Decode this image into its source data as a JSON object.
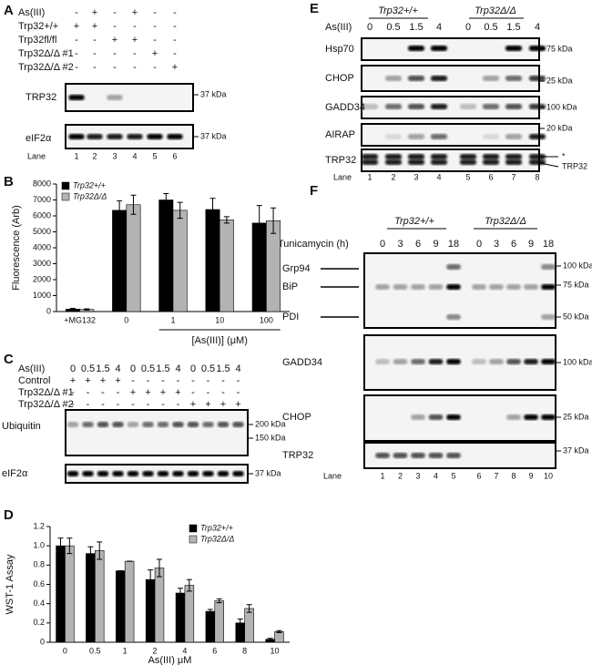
{
  "panels": {
    "A": {
      "letter": "A",
      "conditions": [
        {
          "name": "As(III)",
          "signs": [
            "-",
            "+",
            "-",
            "+",
            "-",
            "-"
          ]
        },
        {
          "name": "Trp32+/+",
          "signs": [
            "+",
            "+",
            "-",
            "-",
            "-",
            "-"
          ]
        },
        {
          "name": "Trp32fl/fl",
          "signs": [
            "-",
            "-",
            "+",
            "+",
            "-",
            "-"
          ]
        },
        {
          "name": "Trp32Δ/Δ #1",
          "signs": [
            "-",
            "-",
            "-",
            "-",
            "+",
            "-"
          ]
        },
        {
          "name": "Trp32Δ/Δ #2",
          "signs": [
            "-",
            "-",
            "-",
            "-",
            "-",
            "+"
          ]
        }
      ],
      "blots": [
        {
          "labels": [
            "TRP32"
          ],
          "markers": [
            "37 kDa"
          ]
        },
        {
          "labels": [
            "eIF2α"
          ],
          "markers": [
            "37 kDa"
          ]
        }
      ],
      "lane_label": "Lane",
      "lanes": [
        "1",
        "2",
        "3",
        "4",
        "5",
        "6"
      ]
    },
    "C": {
      "letter": "C",
      "conditions": [
        {
          "name": "As(III)",
          "signs": [
            "0",
            "0.5",
            "1.5",
            "4",
            "0",
            "0.5",
            "1.5",
            "4",
            "0",
            "0.5",
            "1.5",
            "4"
          ]
        },
        {
          "name": "Control",
          "signs": [
            "+",
            "+",
            "+",
            "+",
            "-",
            "-",
            "-",
            "-",
            "-",
            "-",
            "-",
            "-"
          ]
        },
        {
          "name": "Trp32Δ/Δ #1",
          "signs": [
            "-",
            "-",
            "-",
            "-",
            "+",
            "+",
            "+",
            "+",
            "-",
            "-",
            "-",
            "-"
          ]
        },
        {
          "name": "Trp32Δ/Δ #2",
          "signs": [
            "-",
            "-",
            "-",
            "-",
            "-",
            "-",
            "-",
            "-",
            "+",
            "+",
            "+",
            "+"
          ]
        }
      ],
      "blots": [
        {
          "labels": [
            "Ubiquitin"
          ],
          "markers": [
            "200 kDa",
            "150 kDa"
          ]
        },
        {
          "labels": [
            "eIF2α"
          ],
          "markers": [
            "37 kDa"
          ]
        }
      ]
    },
    "E": {
      "letter": "E",
      "headers": [
        "Trp32+/+",
        "Trp32Δ/Δ"
      ],
      "conditions": [
        {
          "name": "As(III)",
          "signs": [
            "0",
            "0.5",
            "1.5",
            "4",
            "0",
            "0.5",
            "1.5",
            "4"
          ]
        }
      ],
      "blots": [
        {
          "labels": [
            "Hsp70"
          ],
          "markers": [
            "75 kDa"
          ]
        },
        {
          "labels": [
            "CHOP"
          ],
          "markers": [
            "25 kDa"
          ]
        },
        {
          "labels": [
            "GADD34"
          ],
          "markers": [
            "100 kDa"
          ]
        },
        {
          "labels": [
            "AIRAP"
          ],
          "markers": [
            "20 kDa"
          ]
        },
        {
          "labels": [
            "TRP32"
          ],
          "markers": [
            "*",
            "TRP32"
          ]
        }
      ],
      "lane_label": "Lane",
      "lanes": [
        "1",
        "2",
        "3",
        "4",
        "5",
        "6",
        "7",
        "8"
      ]
    },
    "F": {
      "letter": "F",
      "headers": [
        "Trp32+/+",
        "Trp32Δ/Δ"
      ],
      "conditions": [
        {
          "name": "Tunicamycin (h)",
          "signs": [
            "0",
            "3",
            "6",
            "9",
            "18",
            "0",
            "3",
            "6",
            "9",
            "18"
          ]
        }
      ],
      "blots": [
        {
          "labels": [
            "Grp94",
            "BiP",
            "PDI"
          ],
          "markers": [
            "100 kDa",
            "75 kDa",
            "50 kDa"
          ]
        },
        {
          "labels": [
            "GADD34"
          ],
          "markers": [
            "100 kDa"
          ]
        },
        {
          "labels": [
            "CHOP"
          ],
          "markers": [
            "25 kDa"
          ]
        },
        {
          "labels": [
            "TRP32"
          ],
          "markers": [
            "37 kDa"
          ]
        }
      ],
      "lane_label": "Lane",
      "lanes": [
        "1",
        "2",
        "3",
        "4",
        "5",
        "6",
        "7",
        "8",
        "9",
        "10"
      ]
    }
  },
  "chart_data": [
    {
      "type": "bar",
      "panel": "B",
      "y_label": "Fluorescence (Arb)",
      "x_group_label": "[As(III)] (μM)",
      "categories": [
        "+MG132",
        "0",
        "1",
        "10",
        "100"
      ],
      "series": [
        {
          "name": "Trp32+/+",
          "color": "#000000",
          "values": [
            150,
            6350,
            7000,
            6400,
            5550
          ],
          "errors": [
            50,
            600,
            400,
            700,
            1100
          ]
        },
        {
          "name": "Trp32Δ/Δ",
          "color": "#b3b3b3",
          "values": [
            130,
            6700,
            6350,
            5750,
            5700
          ],
          "errors": [
            40,
            600,
            500,
            200,
            800
          ]
        }
      ],
      "ylim": [
        0,
        8000
      ],
      "yticks": [
        0,
        1000,
        2000,
        3000,
        4000,
        5000,
        6000,
        7000,
        8000
      ],
      "legend": "top-left"
    },
    {
      "type": "bar",
      "panel": "D",
      "y_label": "WST-1 Assay",
      "x_label": "As(III) μM",
      "categories": [
        "0",
        "0.5",
        "1",
        "2",
        "4",
        "6",
        "8",
        "10"
      ],
      "series": [
        {
          "name": "Trp32+/+",
          "color": "#000000",
          "values": [
            1.0,
            0.92,
            0.74,
            0.65,
            0.51,
            0.32,
            0.2,
            0.03
          ],
          "errors": [
            0.08,
            0.07,
            0,
            0.1,
            0.05,
            0.02,
            0.04,
            0.01
          ]
        },
        {
          "name": "Trp32Δ/Δ",
          "color": "#b3b3b3",
          "values": [
            1.0,
            0.95,
            0.84,
            0.77,
            0.59,
            0.43,
            0.35,
            0.11
          ],
          "errors": [
            0.08,
            0.09,
            0,
            0.09,
            0.06,
            0.02,
            0.04,
            0.01
          ]
        }
      ],
      "ylim": [
        0,
        1.2
      ],
      "yticks": [
        0,
        0.2,
        0.4,
        0.6,
        0.8,
        {
          "value": 1,
          "label": "1.0"
        },
        1.2
      ],
      "legend": "top-right"
    }
  ]
}
